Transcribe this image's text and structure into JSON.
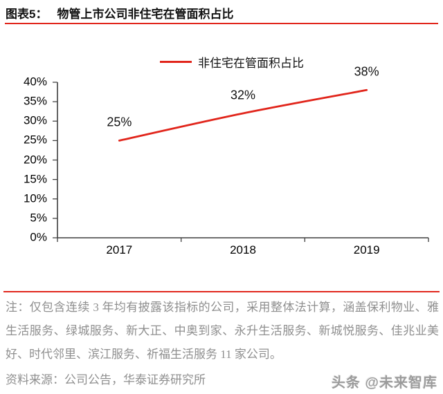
{
  "header": {
    "figure_label": "图表5：",
    "title": "物管上市公司非住宅在管面积占比"
  },
  "chart_data": {
    "type": "line",
    "title": "物管上市公司非住宅在管面积占比",
    "categories": [
      "2017",
      "2018",
      "2019"
    ],
    "series": [
      {
        "name": "非住宅在管面积占比",
        "values": [
          25,
          32,
          38
        ]
      }
    ],
    "data_labels": [
      "25%",
      "32%",
      "38%"
    ],
    "legend_position": "top",
    "grid": false,
    "ylim": [
      0,
      40
    ],
    "ytick_step": 5,
    "ytick_labels": [
      "40%",
      "35%",
      "30%",
      "25%",
      "20%",
      "15%",
      "10%",
      "5%",
      "0%"
    ],
    "line_color": "#e1251b",
    "line_style": "smooth"
  },
  "footer": {
    "note": "注：仅包含连续 3 年均有披露该指标的公司，采用整体法计算，涵盖保利物业、雅生活服务、绿城服务、新大正、中奥到家、永升生活服务、新城悦服务、佳兆业美好、时代邻里、滨江服务、祈福生活服务 11 家公司。",
    "source": "资料来源：公司公告，华泰证券研究所"
  },
  "watermark": {
    "text": "头条 @未来智库"
  },
  "colors": {
    "accent_red": "#e1251b",
    "axis_gray": "#3f3f3f",
    "note_gray": "#8f8f8f",
    "watermark_gray": "#9b9b9b"
  }
}
